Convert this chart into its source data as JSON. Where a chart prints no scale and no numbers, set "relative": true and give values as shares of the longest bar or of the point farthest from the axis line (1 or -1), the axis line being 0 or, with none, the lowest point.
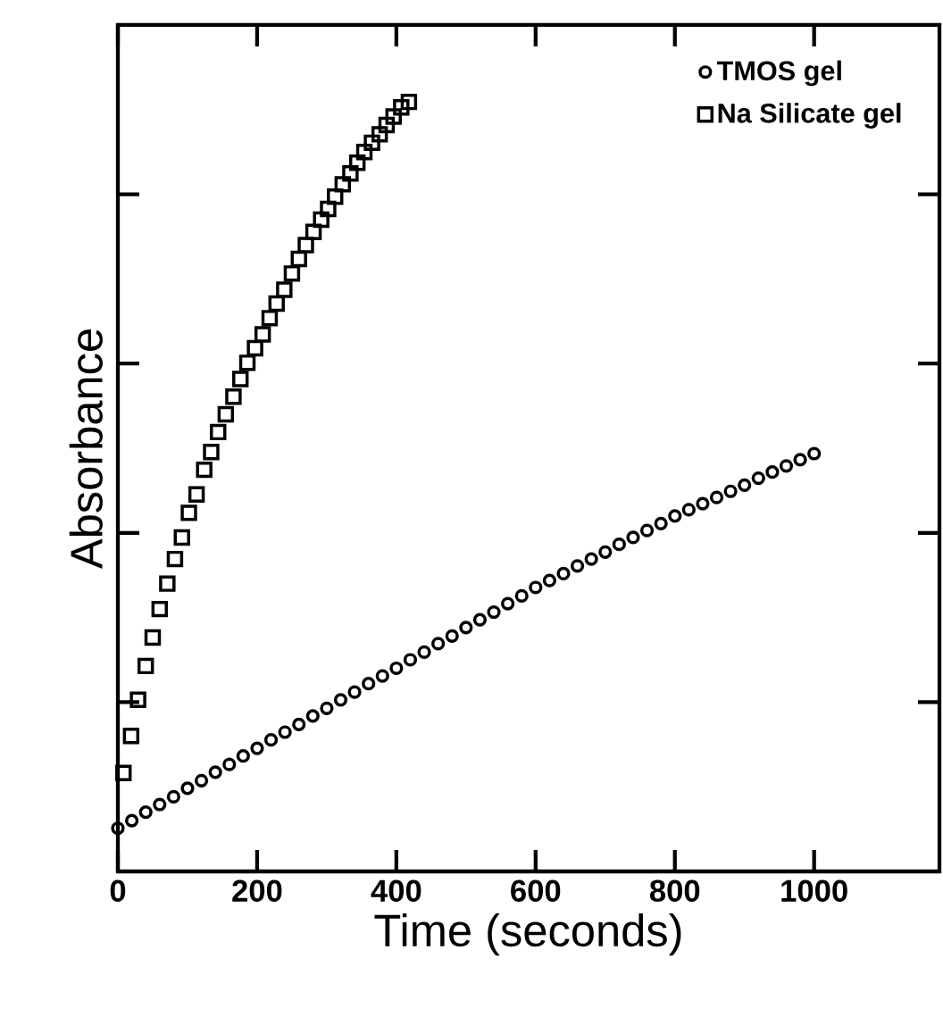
{
  "chart_data": {
    "type": "scatter",
    "xlabel": "Time (seconds)",
    "ylabel": "Absorbance",
    "relative": true,
    "xlim": [
      0,
      1180
    ],
    "xticks": [
      0,
      200,
      400,
      600,
      800,
      1000
    ],
    "legend": "top right",
    "series": [
      {
        "name": "TMOS  gel",
        "color": "#000000",
        "marker": "circle",
        "x": [
          0,
          20,
          40,
          60,
          80,
          100,
          120,
          140,
          160,
          180,
          200,
          220,
          240,
          260,
          280,
          300,
          320,
          340,
          360,
          380,
          400,
          420,
          440,
          460,
          480,
          500,
          520,
          540,
          560,
          580,
          600,
          620,
          640,
          660,
          680,
          700,
          720,
          740,
          760,
          780,
          800,
          820,
          840,
          860,
          880,
          900,
          920,
          940,
          960,
          980,
          1000
        ],
        "values": [
          0.056,
          0.066,
          0.077,
          0.087,
          0.097,
          0.108,
          0.118,
          0.129,
          0.139,
          0.15,
          0.16,
          0.171,
          0.181,
          0.191,
          0.202,
          0.212,
          0.223,
          0.233,
          0.244,
          0.254,
          0.264,
          0.275,
          0.285,
          0.296,
          0.306,
          0.317,
          0.327,
          0.337,
          0.348,
          0.358,
          0.369,
          0.378,
          0.387,
          0.397,
          0.406,
          0.415,
          0.425,
          0.434,
          0.443,
          0.452,
          0.462,
          0.47,
          0.478,
          0.486,
          0.494,
          0.502,
          0.511,
          0.519,
          0.527,
          0.535,
          0.543
        ]
      },
      {
        "name": "Na  Silicate  gel",
        "color": "#000000",
        "marker": "square",
        "x": [
          8,
          19,
          29,
          40,
          50,
          60,
          71,
          82,
          92,
          102,
          113,
          124,
          134,
          144,
          155,
          166,
          176,
          186,
          197,
          208,
          218,
          228,
          239,
          250,
          260,
          270,
          281,
          292,
          302,
          312,
          323,
          334,
          344,
          354,
          365,
          376,
          386,
          396,
          407,
          418
        ],
        "values": [
          0.128,
          0.176,
          0.223,
          0.267,
          0.304,
          0.341,
          0.374,
          0.406,
          0.434,
          0.466,
          0.49,
          0.522,
          0.545,
          0.571,
          0.594,
          0.617,
          0.64,
          0.661,
          0.68,
          0.698,
          0.719,
          0.738,
          0.756,
          0.777,
          0.796,
          0.814,
          0.831,
          0.847,
          0.861,
          0.877,
          0.893,
          0.907,
          0.921,
          0.935,
          0.947,
          0.958,
          0.97,
          0.981,
          0.993,
          1.0
        ]
      }
    ]
  }
}
